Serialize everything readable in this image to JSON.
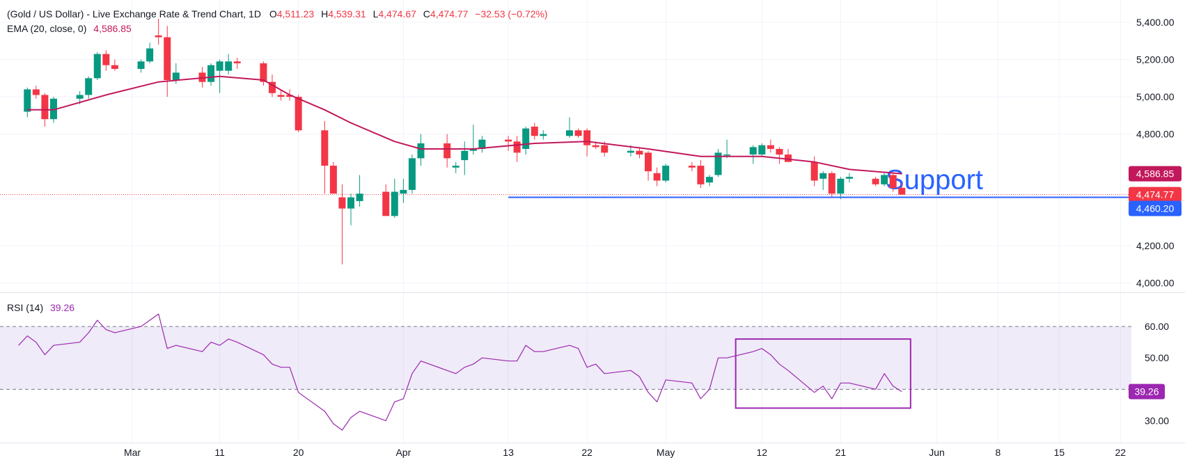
{
  "header": {
    "title": "(Gold / US Dollar) - Live Exchange Rate & Trend Chart, 1D",
    "o_label": "O",
    "o_value": "4,511.23",
    "h_label": "H",
    "h_value": "4,539.31",
    "l_label": "L",
    "l_value": "4,474.67",
    "c_label": "C",
    "c_value": "4,474.77",
    "change": "−32.53 (−0.72%)",
    "ema_label": "EMA (20, close, 0)",
    "ema_value": "4,586.85",
    "rsi_label": "RSI (14)",
    "rsi_value": "39.26"
  },
  "colors": {
    "up": "#089981",
    "down": "#f23645",
    "ema": "#c2185b",
    "rsi": "#9c27b0",
    "support": "#2962ff",
    "rsi_band": "#7e57c2"
  },
  "annotations": {
    "support_text": "Support",
    "support_level": 4460.2,
    "ema_tag": "4,586.85",
    "price_tag": "4,474.77",
    "support_tag": "4,460.20",
    "rsi_tag": "39.26"
  },
  "chart_data": [
    {
      "type": "candlestick",
      "title": "(Gold / US Dollar) - Live Exchange Rate & Trend Chart, 1D",
      "ylim": [
        3950,
        5520
      ],
      "y_ticks": [
        "5,400.00",
        "5,200.00",
        "5,000.00",
        "4,800.00",
        "4,200.00",
        "4,000.00"
      ],
      "x_ticks": [
        {
          "label": "Mar",
          "date": "2026-03-01"
        },
        {
          "label": "11",
          "date": "2026-03-11"
        },
        {
          "label": "20",
          "date": "2026-03-20"
        },
        {
          "label": "Apr",
          "date": "2026-04-01"
        },
        {
          "label": "13",
          "date": "2026-04-13"
        },
        {
          "label": "22",
          "date": "2026-04-22"
        },
        {
          "label": "May",
          "date": "2026-05-01"
        },
        {
          "label": "12",
          "date": "2026-05-12"
        },
        {
          "label": "21",
          "date": "2026-05-21"
        },
        {
          "label": "Jun",
          "date": "2026-06-01"
        },
        {
          "label": "8",
          "date": "2026-06-08"
        },
        {
          "label": "15",
          "date": "2026-06-15"
        },
        {
          "label": "22",
          "date": "2026-06-22"
        }
      ],
      "candles": [
        {
          "date": "2026-02-17",
          "o": 4920,
          "h": 5050,
          "l": 4890,
          "c": 5040
        },
        {
          "date": "2026-02-18",
          "o": 5040,
          "h": 5060,
          "l": 4990,
          "c": 5010
        },
        {
          "date": "2026-02-19",
          "o": 5010,
          "h": 5020,
          "l": 4840,
          "c": 4880
        },
        {
          "date": "2026-02-20",
          "o": 4880,
          "h": 5000,
          "l": 4860,
          "c": 4990
        },
        {
          "date": "2026-02-23",
          "o": 4990,
          "h": 5030,
          "l": 4960,
          "c": 5010
        },
        {
          "date": "2026-02-24",
          "o": 5010,
          "h": 5110,
          "l": 4990,
          "c": 5100
        },
        {
          "date": "2026-02-25",
          "o": 5100,
          "h": 5240,
          "l": 5090,
          "c": 5230
        },
        {
          "date": "2026-02-26",
          "o": 5230,
          "h": 5250,
          "l": 5140,
          "c": 5170
        },
        {
          "date": "2026-02-27",
          "o": 5170,
          "h": 5200,
          "l": 5140,
          "c": 5150
        },
        {
          "date": "2026-03-02",
          "o": 5150,
          "h": 5200,
          "l": 5130,
          "c": 5190
        },
        {
          "date": "2026-03-03",
          "o": 5190,
          "h": 5290,
          "l": 5180,
          "c": 5260
        },
        {
          "date": "2026-03-04",
          "o": 5330,
          "h": 5420,
          "l": 5280,
          "c": 5320
        },
        {
          "date": "2026-03-05",
          "o": 5320,
          "h": 5380,
          "l": 5000,
          "c": 5090
        },
        {
          "date": "2026-03-06",
          "o": 5090,
          "h": 5180,
          "l": 5070,
          "c": 5130
        },
        {
          "date": "2026-03-09",
          "o": 5130,
          "h": 5160,
          "l": 5050,
          "c": 5080
        },
        {
          "date": "2026-03-10",
          "o": 5080,
          "h": 5180,
          "l": 5060,
          "c": 5170
        },
        {
          "date": "2026-03-11",
          "o": 5140,
          "h": 5200,
          "l": 5020,
          "c": 5190
        },
        {
          "date": "2026-03-12",
          "o": 5140,
          "h": 5230,
          "l": 5120,
          "c": 5190
        },
        {
          "date": "2026-03-13",
          "o": 5190,
          "h": 5210,
          "l": 5150,
          "c": 5180
        },
        {
          "date": "2026-03-16",
          "o": 5180,
          "h": 5190,
          "l": 5060,
          "c": 5080
        },
        {
          "date": "2026-03-17",
          "o": 5080,
          "h": 5120,
          "l": 5000,
          "c": 5020
        },
        {
          "date": "2026-03-18",
          "o": 5010,
          "h": 5040,
          "l": 4980,
          "c": 5000
        },
        {
          "date": "2026-03-19",
          "o": 5010,
          "h": 5040,
          "l": 4980,
          "c": 5000
        },
        {
          "date": "2026-03-20",
          "o": 5000,
          "h": 5010,
          "l": 4810,
          "c": 4820
        },
        {
          "date": "2026-03-23",
          "o": 4820,
          "h": 4870,
          "l": 4480,
          "c": 4630
        },
        {
          "date": "2026-03-24",
          "o": 4630,
          "h": 4650,
          "l": 4490,
          "c": 4480
        },
        {
          "date": "2026-03-25",
          "o": 4460,
          "h": 4530,
          "l": 4100,
          "c": 4400
        },
        {
          "date": "2026-03-26",
          "o": 4400,
          "h": 4480,
          "l": 4310,
          "c": 4460
        },
        {
          "date": "2026-03-27",
          "o": 4440,
          "h": 4580,
          "l": 4410,
          "c": 4480
        },
        {
          "date": "2026-03-30",
          "o": 4490,
          "h": 4530,
          "l": 4360,
          "c": 4360
        },
        {
          "date": "2026-03-31",
          "o": 4360,
          "h": 4560,
          "l": 4350,
          "c": 4490
        },
        {
          "date": "2026-04-01",
          "o": 4480,
          "h": 4560,
          "l": 4430,
          "c": 4500
        },
        {
          "date": "2026-04-02",
          "o": 4500,
          "h": 4690,
          "l": 4480,
          "c": 4670
        },
        {
          "date": "2026-04-03",
          "o": 4670,
          "h": 4800,
          "l": 4630,
          "c": 4750
        },
        {
          "date": "2026-04-06",
          "o": 4750,
          "h": 4800,
          "l": 4620,
          "c": 4670
        },
        {
          "date": "2026-04-07",
          "o": 4620,
          "h": 4650,
          "l": 4590,
          "c": 4630
        },
        {
          "date": "2026-04-08",
          "o": 4660,
          "h": 4760,
          "l": 4580,
          "c": 4710
        },
        {
          "date": "2026-04-09",
          "o": 4710,
          "h": 4850,
          "l": 4690,
          "c": 4720
        },
        {
          "date": "2026-04-10",
          "o": 4720,
          "h": 4790,
          "l": 4700,
          "c": 4770
        },
        {
          "date": "2026-04-13",
          "o": 4770,
          "h": 4790,
          "l": 4710,
          "c": 4760
        },
        {
          "date": "2026-04-14",
          "o": 4760,
          "h": 4790,
          "l": 4650,
          "c": 4700
        },
        {
          "date": "2026-04-15",
          "o": 4720,
          "h": 4840,
          "l": 4690,
          "c": 4830
        },
        {
          "date": "2026-04-16",
          "o": 4840,
          "h": 4860,
          "l": 4770,
          "c": 4790
        },
        {
          "date": "2026-04-17",
          "o": 4790,
          "h": 4820,
          "l": 4770,
          "c": 4800
        },
        {
          "date": "2026-04-20",
          "o": 4790,
          "h": 4890,
          "l": 4780,
          "c": 4820
        },
        {
          "date": "2026-04-21",
          "o": 4820,
          "h": 4830,
          "l": 4780,
          "c": 4790
        },
        {
          "date": "2026-04-22",
          "o": 4820,
          "h": 4830,
          "l": 4680,
          "c": 4740
        },
        {
          "date": "2026-04-23",
          "o": 4740,
          "h": 4760,
          "l": 4720,
          "c": 4730
        },
        {
          "date": "2026-04-24",
          "o": 4740,
          "h": 4760,
          "l": 4680,
          "c": 4700
        },
        {
          "date": "2026-04-27",
          "o": 4700,
          "h": 4740,
          "l": 4680,
          "c": 4710
        },
        {
          "date": "2026-04-28",
          "o": 4710,
          "h": 4730,
          "l": 4670,
          "c": 4690
        },
        {
          "date": "2026-04-29",
          "o": 4700,
          "h": 4710,
          "l": 4550,
          "c": 4600
        },
        {
          "date": "2026-04-30",
          "o": 4590,
          "h": 4620,
          "l": 4520,
          "c": 4550
        },
        {
          "date": "2026-05-01",
          "o": 4550,
          "h": 4640,
          "l": 4540,
          "c": 4630
        },
        {
          "date": "2026-05-04",
          "o": 4630,
          "h": 4650,
          "l": 4600,
          "c": 4620
        },
        {
          "date": "2026-05-05",
          "o": 4630,
          "h": 4660,
          "l": 4510,
          "c": 4530
        },
        {
          "date": "2026-05-06",
          "o": 4540,
          "h": 4580,
          "l": 4520,
          "c": 4570
        },
        {
          "date": "2026-05-07",
          "o": 4580,
          "h": 4720,
          "l": 4570,
          "c": 4700
        },
        {
          "date": "2026-05-08",
          "o": 4690,
          "h": 4770,
          "l": 4670,
          "c": 4690
        },
        {
          "date": "2026-05-11",
          "o": 4690,
          "h": 4740,
          "l": 4640,
          "c": 4730
        },
        {
          "date": "2026-05-12",
          "o": 4690,
          "h": 4750,
          "l": 4680,
          "c": 4740
        },
        {
          "date": "2026-05-13",
          "o": 4740,
          "h": 4770,
          "l": 4700,
          "c": 4720
        },
        {
          "date": "2026-05-14",
          "o": 4720,
          "h": 4730,
          "l": 4640,
          "c": 4690
        },
        {
          "date": "2026-05-15",
          "o": 4690,
          "h": 4720,
          "l": 4660,
          "c": 4650
        },
        {
          "date": "2026-05-18",
          "o": 4650,
          "h": 4680,
          "l": 4520,
          "c": 4550
        },
        {
          "date": "2026-05-19",
          "o": 4560,
          "h": 4600,
          "l": 4500,
          "c": 4590
        },
        {
          "date": "2026-05-20",
          "o": 4590,
          "h": 4600,
          "l": 4460,
          "c": 4480
        },
        {
          "date": "2026-05-21",
          "o": 4480,
          "h": 4570,
          "l": 4450,
          "c": 4560
        },
        {
          "date": "2026-05-22",
          "o": 4560,
          "h": 4590,
          "l": 4540,
          "c": 4570
        },
        {
          "date": "2026-05-25",
          "o": 4560,
          "h": 4570,
          "l": 4520,
          "c": 4530
        },
        {
          "date": "2026-05-26",
          "o": 4530,
          "h": 4590,
          "l": 4520,
          "c": 4580
        },
        {
          "date": "2026-05-27",
          "o": 4580,
          "h": 4590,
          "l": 4490,
          "c": 4510
        },
        {
          "date": "2026-05-28",
          "o": 4511.23,
          "h": 4539.31,
          "l": 4474.67,
          "c": 4474.77
        }
      ],
      "ema": [
        {
          "date": "2026-02-17",
          "v": 4930
        },
        {
          "date": "2026-02-20",
          "v": 4930
        },
        {
          "date": "2026-02-26",
          "v": 5010
        },
        {
          "date": "2026-03-04",
          "v": 5080
        },
        {
          "date": "2026-03-11",
          "v": 5110
        },
        {
          "date": "2026-03-16",
          "v": 5090
        },
        {
          "date": "2026-03-19",
          "v": 5010
        },
        {
          "date": "2026-03-23",
          "v": 4930
        },
        {
          "date": "2026-03-26",
          "v": 4860
        },
        {
          "date": "2026-03-31",
          "v": 4760
        },
        {
          "date": "2026-04-03",
          "v": 4720
        },
        {
          "date": "2026-04-09",
          "v": 4720
        },
        {
          "date": "2026-04-16",
          "v": 4750
        },
        {
          "date": "2026-04-22",
          "v": 4760
        },
        {
          "date": "2026-04-29",
          "v": 4720
        },
        {
          "date": "2026-05-05",
          "v": 4680
        },
        {
          "date": "2026-05-12",
          "v": 4680
        },
        {
          "date": "2026-05-18",
          "v": 4650
        },
        {
          "date": "2026-05-22",
          "v": 4610
        },
        {
          "date": "2026-05-28",
          "v": 4586.85
        }
      ],
      "support": 4460.2,
      "last_price": 4474.77
    },
    {
      "type": "line",
      "title": "RSI (14)",
      "ylim": [
        23,
        70
      ],
      "y_ticks": [
        "60.00",
        "50.00",
        "30.00"
      ],
      "band": [
        40,
        60
      ],
      "values": [
        {
          "date": "2026-02-16",
          "v": 54
        },
        {
          "date": "2026-02-17",
          "v": 57
        },
        {
          "date": "2026-02-18",
          "v": 55
        },
        {
          "date": "2026-02-19",
          "v": 51
        },
        {
          "date": "2026-02-20",
          "v": 54
        },
        {
          "date": "2026-02-23",
          "v": 55
        },
        {
          "date": "2026-02-24",
          "v": 58
        },
        {
          "date": "2026-02-25",
          "v": 62
        },
        {
          "date": "2026-02-26",
          "v": 59
        },
        {
          "date": "2026-02-27",
          "v": 58
        },
        {
          "date": "2026-03-02",
          "v": 60
        },
        {
          "date": "2026-03-03",
          "v": 62
        },
        {
          "date": "2026-03-04",
          "v": 64
        },
        {
          "date": "2026-03-05",
          "v": 53
        },
        {
          "date": "2026-03-06",
          "v": 54
        },
        {
          "date": "2026-03-09",
          "v": 52
        },
        {
          "date": "2026-03-10",
          "v": 55
        },
        {
          "date": "2026-03-11",
          "v": 54
        },
        {
          "date": "2026-03-12",
          "v": 56
        },
        {
          "date": "2026-03-13",
          "v": 55
        },
        {
          "date": "2026-03-16",
          "v": 51
        },
        {
          "date": "2026-03-17",
          "v": 48
        },
        {
          "date": "2026-03-18",
          "v": 47
        },
        {
          "date": "2026-03-19",
          "v": 47
        },
        {
          "date": "2026-03-20",
          "v": 39
        },
        {
          "date": "2026-03-23",
          "v": 33
        },
        {
          "date": "2026-03-24",
          "v": 29
        },
        {
          "date": "2026-03-25",
          "v": 27
        },
        {
          "date": "2026-03-26",
          "v": 31
        },
        {
          "date": "2026-03-27",
          "v": 33
        },
        {
          "date": "2026-03-30",
          "v": 30
        },
        {
          "date": "2026-03-31",
          "v": 36
        },
        {
          "date": "2026-04-01",
          "v": 37
        },
        {
          "date": "2026-04-02",
          "v": 45
        },
        {
          "date": "2026-04-03",
          "v": 49
        },
        {
          "date": "2026-04-06",
          "v": 46
        },
        {
          "date": "2026-04-07",
          "v": 45
        },
        {
          "date": "2026-04-08",
          "v": 47
        },
        {
          "date": "2026-04-09",
          "v": 48
        },
        {
          "date": "2026-04-10",
          "v": 50
        },
        {
          "date": "2026-04-13",
          "v": 49
        },
        {
          "date": "2026-04-14",
          "v": 49
        },
        {
          "date": "2026-04-15",
          "v": 54
        },
        {
          "date": "2026-04-16",
          "v": 52
        },
        {
          "date": "2026-04-17",
          "v": 52
        },
        {
          "date": "2026-04-20",
          "v": 54
        },
        {
          "date": "2026-04-21",
          "v": 53
        },
        {
          "date": "2026-04-22",
          "v": 47
        },
        {
          "date": "2026-04-23",
          "v": 48
        },
        {
          "date": "2026-04-24",
          "v": 45
        },
        {
          "date": "2026-04-27",
          "v": 46
        },
        {
          "date": "2026-04-28",
          "v": 44
        },
        {
          "date": "2026-04-29",
          "v": 39
        },
        {
          "date": "2026-04-30",
          "v": 36
        },
        {
          "date": "2026-05-01",
          "v": 43
        },
        {
          "date": "2026-05-04",
          "v": 42
        },
        {
          "date": "2026-05-05",
          "v": 37
        },
        {
          "date": "2026-05-06",
          "v": 40
        },
        {
          "date": "2026-05-07",
          "v": 50
        },
        {
          "date": "2026-05-08",
          "v": 50
        },
        {
          "date": "2026-05-11",
          "v": 52
        },
        {
          "date": "2026-05-12",
          "v": 53
        },
        {
          "date": "2026-05-13",
          "v": 51
        },
        {
          "date": "2026-05-14",
          "v": 48
        },
        {
          "date": "2026-05-15",
          "v": 46
        },
        {
          "date": "2026-05-18",
          "v": 39
        },
        {
          "date": "2026-05-19",
          "v": 41
        },
        {
          "date": "2026-05-20",
          "v": 37
        },
        {
          "date": "2026-05-21",
          "v": 42
        },
        {
          "date": "2026-05-22",
          "v": 42
        },
        {
          "date": "2026-05-25",
          "v": 40
        },
        {
          "date": "2026-05-26",
          "v": 45
        },
        {
          "date": "2026-05-27",
          "v": 41
        },
        {
          "date": "2026-05-28",
          "v": 39.26
        }
      ],
      "highlight_box": {
        "date_from": "2026-05-09",
        "date_to": "2026-05-29",
        "v_from": 34,
        "v_to": 56
      },
      "last_value": 39.26
    }
  ]
}
